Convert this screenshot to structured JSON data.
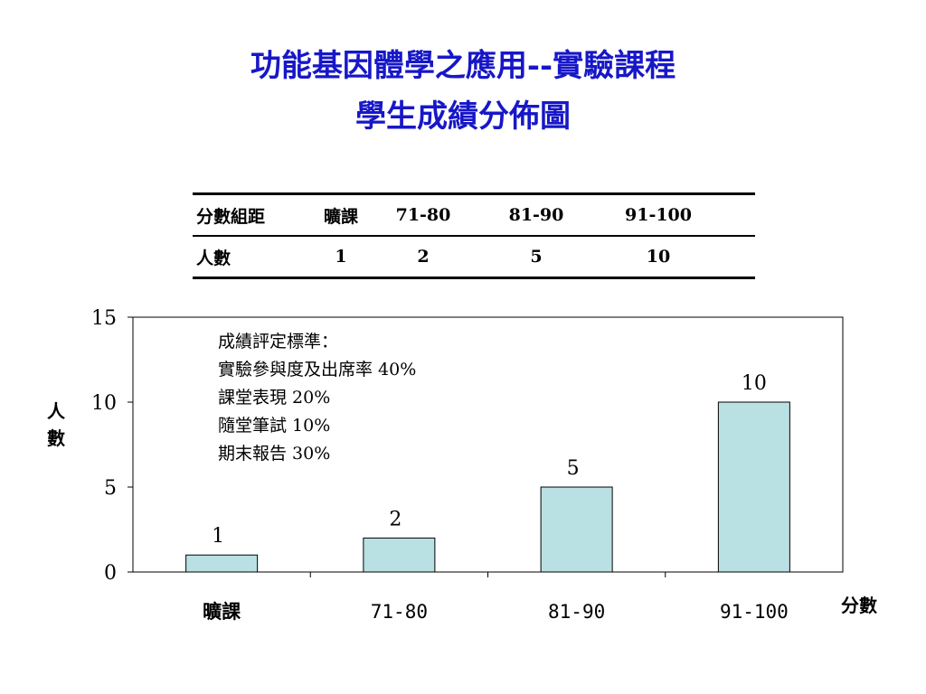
{
  "title": {
    "line1": "功能基因體學之應用--實驗課程",
    "line2": "學生成績分佈圖"
  },
  "table": {
    "header": [
      "分數組距",
      "曠課",
      "71-80",
      "81-90",
      "91-100"
    ],
    "row": [
      "人數",
      "1",
      "2",
      "5",
      "10"
    ]
  },
  "annotation": {
    "lines": [
      "成績評定標準：",
      "實驗參與度及出席率 40%",
      "課堂表現 20%",
      "隨堂筆試 10%",
      "期末報告 30%"
    ]
  },
  "chart_data": {
    "type": "bar",
    "categories": [
      "曠課",
      "71-80",
      "81-90",
      "91-100"
    ],
    "values": [
      1,
      2,
      5,
      10
    ],
    "data_labels": [
      "1",
      "2",
      "5",
      "10"
    ],
    "ylabel": "人數",
    "xlabel": "分數",
    "ylim": [
      0,
      15
    ],
    "yticks": [
      0,
      5,
      10,
      15
    ],
    "grid": false,
    "bar_color": "#b9e0e3",
    "legend": "none"
  }
}
